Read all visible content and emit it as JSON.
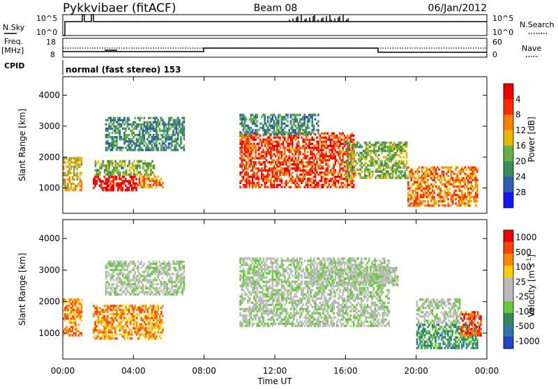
{
  "header": {
    "station": "Pykkvibaer (fitACF)",
    "beam": "Beam 08",
    "date": "06/Jan/2012"
  },
  "nsky_panel": {
    "left_label": "N.Sky",
    "right_label": "N.Search",
    "left_ticks": [
      "10^5",
      "10^0"
    ],
    "right_ticks": [
      "10^5",
      "10^0"
    ]
  },
  "freq_panel": {
    "left_label": "Freq.",
    "left_unit": "[MHz]",
    "right_label": "Nave",
    "left_ticks": [
      "18",
      "8"
    ],
    "right_ticks": [
      "60",
      "0"
    ]
  },
  "cpid": {
    "label": "CPID",
    "mode": "normal (fast stereo) 153"
  },
  "chart_data": [
    {
      "type": "heatmap",
      "title": "",
      "xlabel": "",
      "ylabel": "Slant Range [km]",
      "xlim": [
        0,
        24
      ],
      "ylim": [
        180,
        4600
      ],
      "yticks": [
        1000,
        2000,
        3000,
        4000
      ],
      "colorbar_label": "Power [dB]",
      "colorbar_ticks": [
        "4",
        "8",
        "12",
        "16",
        "20",
        "24",
        "28"
      ],
      "colorbar_colors": [
        "#1414ff",
        "#2e5cb0",
        "#3d8c5c",
        "#66b04a",
        "#e8b800",
        "#ff8000",
        "#ff2a00",
        "#ee0000"
      ],
      "echo_regions": [
        {
          "t": [
            0.0,
            1.1
          ],
          "r": [
            900,
            2000
          ],
          "level": 4
        },
        {
          "t": [
            1.7,
            4.2
          ],
          "r": [
            900,
            1400
          ],
          "level": 7
        },
        {
          "t": [
            4.2,
            5.7
          ],
          "r": [
            1000,
            1400
          ],
          "level": 5
        },
        {
          "t": [
            1.8,
            5.2
          ],
          "r": [
            1400,
            1900
          ],
          "level": 3
        },
        {
          "t": [
            2.4,
            6.9
          ],
          "r": [
            2200,
            3300
          ],
          "level": 2
        },
        {
          "t": [
            10.0,
            16.5
          ],
          "r": [
            1000,
            2800
          ],
          "level": 6
        },
        {
          "t": [
            10.0,
            14.5
          ],
          "r": [
            2700,
            3400
          ],
          "level": 2
        },
        {
          "t": [
            16.0,
            19.5
          ],
          "r": [
            1300,
            2500
          ],
          "level": 3
        },
        {
          "t": [
            19.5,
            23.5
          ],
          "r": [
            400,
            1700
          ],
          "level": 5
        }
      ]
    },
    {
      "type": "heatmap",
      "title": "",
      "xlabel": "Time UT",
      "ylabel": "Slant Range [km]",
      "xlim": [
        0,
        24
      ],
      "ylim": [
        180,
        4600
      ],
      "yticks": [
        1000,
        2000,
        3000,
        4000
      ],
      "xticks": [
        "00:00",
        "04:00",
        "08:00",
        "12:00",
        "16:00",
        "20:00",
        "00:00"
      ],
      "colorbar_label": "Velocity [m s",
      "colorbar_unit_exp": "-1",
      "colorbar_unit_end": "]",
      "colorbar_ticks": [
        "1000",
        "500",
        "100",
        "25",
        "-25",
        "-100",
        "-500",
        "-1000"
      ],
      "colorbar_colors": [
        "#2244cc",
        "#3377aa",
        "#338855",
        "#66cc33",
        "#bbbbbb",
        "#bbbbbb",
        "#ffcc00",
        "#ff8800",
        "#ff4400",
        "#ee0000"
      ],
      "echo_regions": [
        {
          "t": [
            0.0,
            1.1
          ],
          "r": [
            900,
            2100
          ],
          "level": 7
        },
        {
          "t": [
            1.7,
            5.7
          ],
          "r": [
            800,
            1900
          ],
          "level": 7
        },
        {
          "t": [
            2.4,
            6.9
          ],
          "r": [
            2200,
            3300
          ],
          "level": 4
        },
        {
          "t": [
            10.0,
            18.5
          ],
          "r": [
            1200,
            3400
          ],
          "level": 4
        },
        {
          "t": [
            14.0,
            19.0
          ],
          "r": [
            2500,
            3100
          ],
          "level": 4
        },
        {
          "t": [
            20.0,
            23.5
          ],
          "r": [
            500,
            1300
          ],
          "level": 2
        },
        {
          "t": [
            20.0,
            22.5
          ],
          "r": [
            1300,
            2100
          ],
          "level": 4
        },
        {
          "t": [
            22.5,
            23.7
          ],
          "r": [
            900,
            1700
          ],
          "level": 8
        }
      ]
    }
  ],
  "colors": {
    "axis": "#000000",
    "background": "#ffffff"
  }
}
